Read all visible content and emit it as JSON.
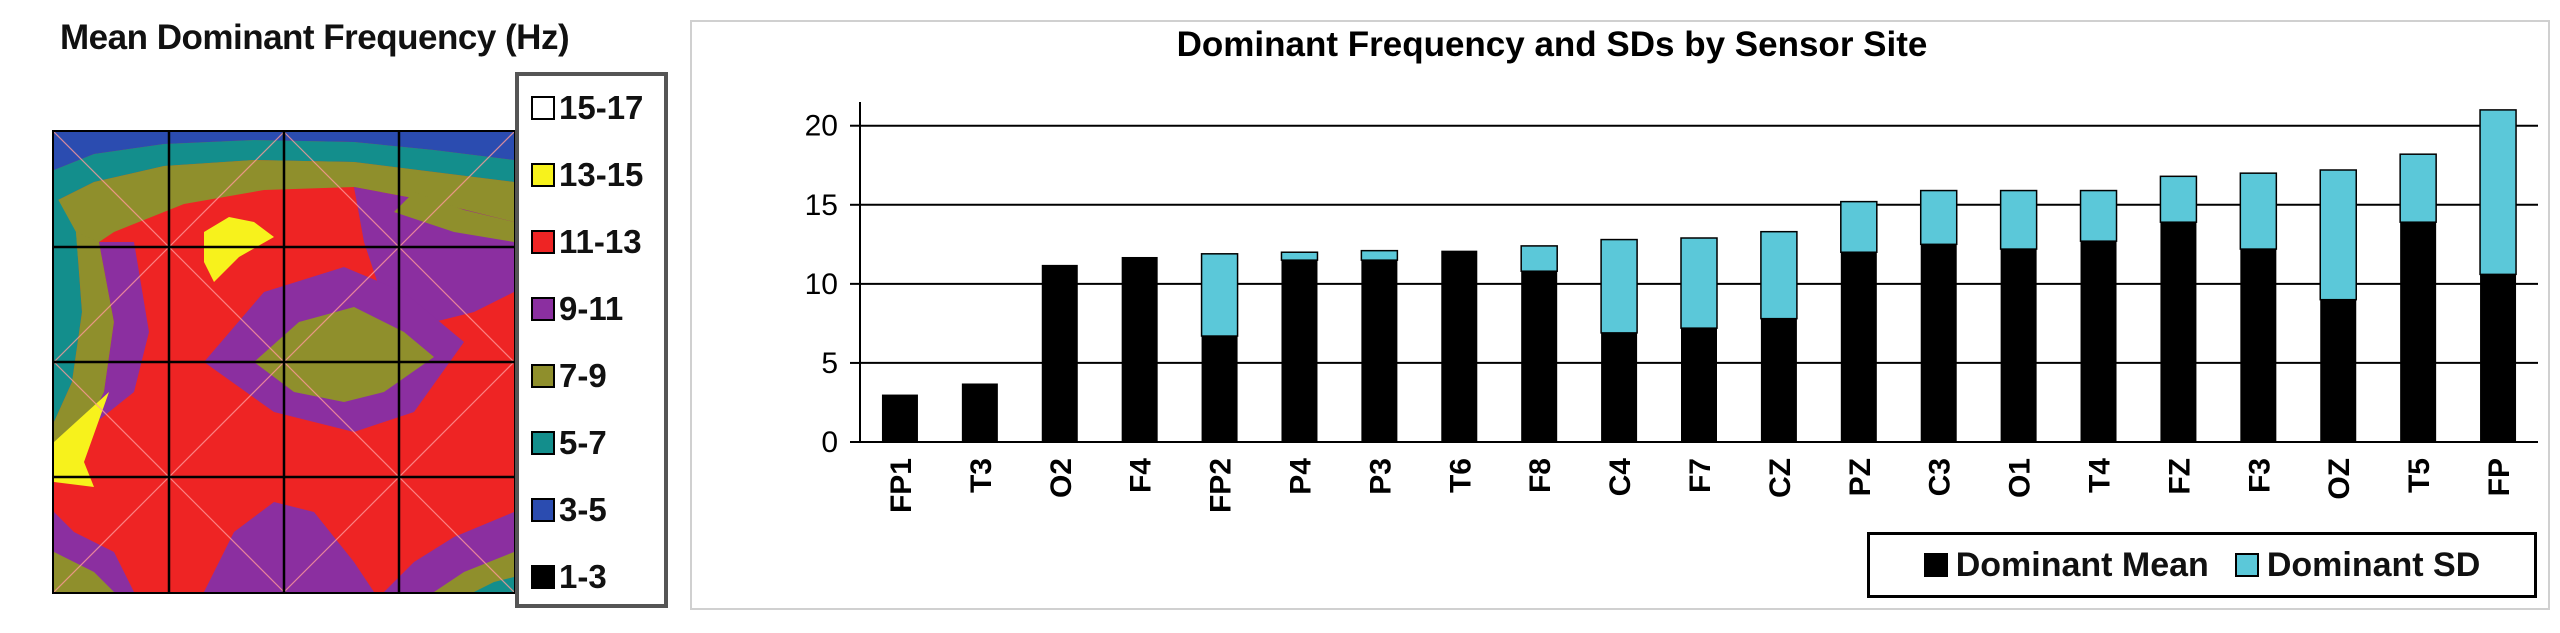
{
  "contour": {
    "title": "Mean Dominant Frequency (Hz)",
    "legend": [
      {
        "label": "15-17",
        "color": "#ffffff"
      },
      {
        "label": "13-15",
        "color": "#f7f21c"
      },
      {
        "label": "11-13",
        "color": "#ee2424"
      },
      {
        "label": "9-11",
        "color": "#8b2fa0"
      },
      {
        "label": "7-9",
        "color": "#8f8f2c"
      },
      {
        "label": "5-7",
        "color": "#138e8c"
      },
      {
        "label": "3-5",
        "color": "#2b4cb0"
      },
      {
        "label": "1-3",
        "color": "#000000"
      }
    ]
  },
  "chart_data": {
    "type": "bar",
    "stacked": true,
    "title": "Dominant Frequency and SDs by Sensor Site",
    "xlabel": "",
    "ylabel": "",
    "ylim": [
      0,
      20
    ],
    "yticks": [
      0,
      5,
      10,
      15,
      20
    ],
    "grid": true,
    "legend_position": "bottom-right",
    "categories": [
      "FP1",
      "T3",
      "O2",
      "F4",
      "FP2",
      "P4",
      "P3",
      "T6",
      "F8",
      "C4",
      "F7",
      "CZ",
      "PZ",
      "C3",
      "O1",
      "T4",
      "FZ",
      "F3",
      "OZ",
      "T5",
      "FP"
    ],
    "series": [
      {
        "name": "Dominant Mean",
        "color": "#000000",
        "values": [
          3.0,
          3.7,
          11.2,
          11.7,
          6.7,
          11.5,
          11.5,
          12.1,
          10.8,
          6.9,
          7.2,
          7.8,
          12.0,
          12.5,
          12.2,
          12.7,
          13.9,
          12.2,
          9.0,
          13.9,
          10.6
        ]
      },
      {
        "name": "Dominant SD",
        "color": "#5bc8d9",
        "values": [
          0,
          0,
          0,
          0,
          5.2,
          0.5,
          0.6,
          0,
          1.6,
          5.9,
          5.7,
          5.5,
          3.2,
          3.4,
          3.7,
          3.2,
          2.9,
          4.8,
          8.2,
          4.3,
          10.4
        ]
      }
    ]
  }
}
